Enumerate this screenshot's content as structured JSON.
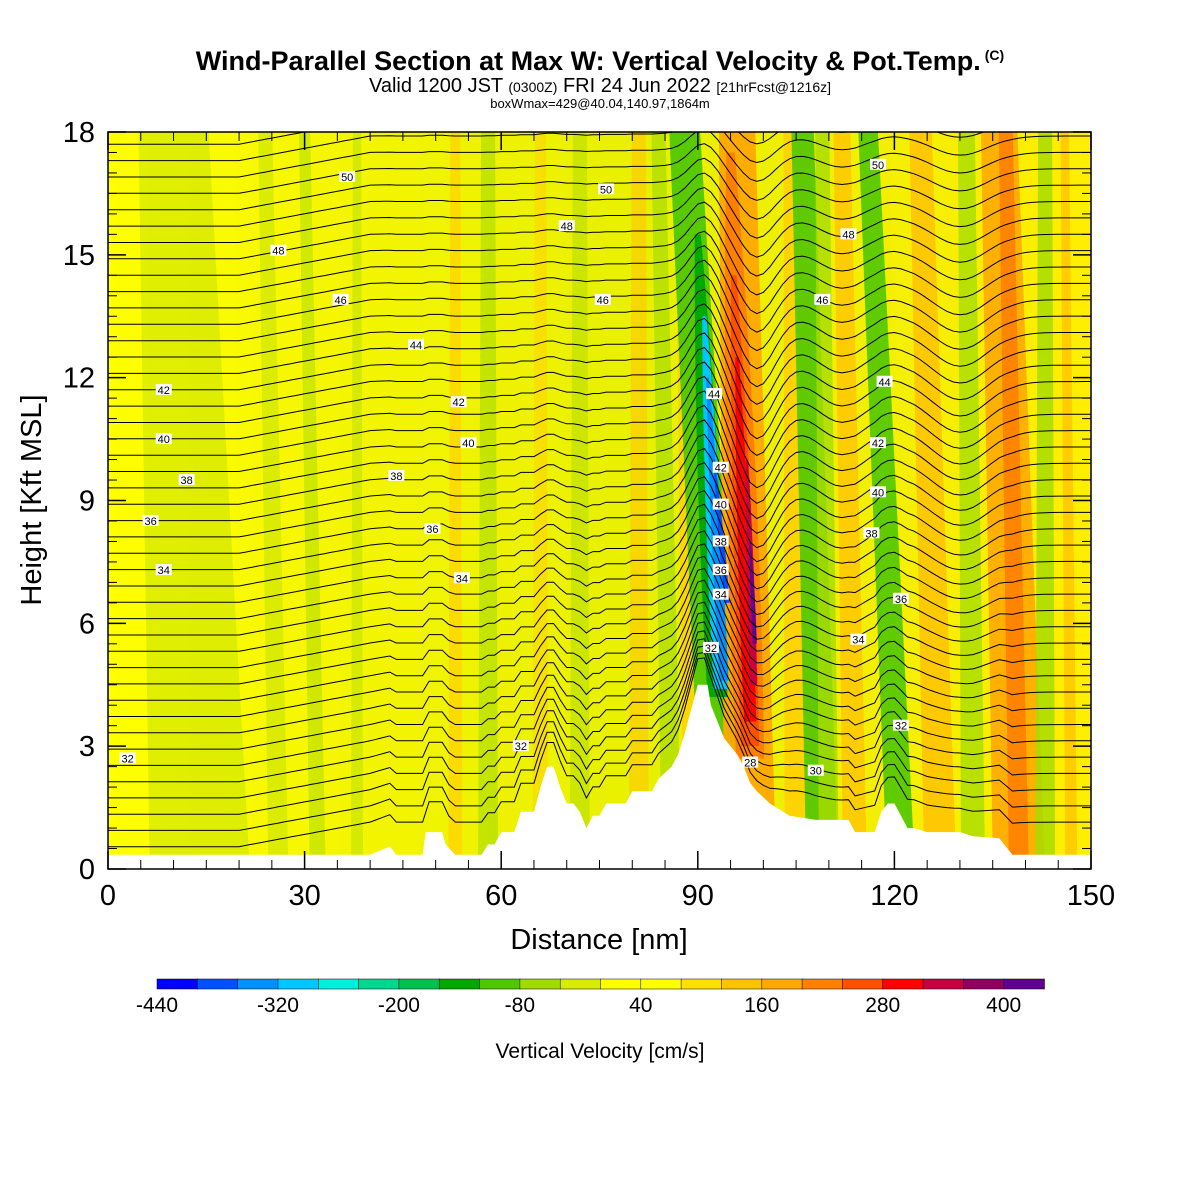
{
  "header": {
    "title": "Wind-Parallel Section at Max W: Vertical Velocity & Pot.Temp.",
    "copyright": "(C)",
    "valid_main": "Valid 1200 JST",
    "valid_utc": "(0300Z)",
    "valid_date": "FRI 24 Jun 2022",
    "forecast": "[21hrFcst@1216z]",
    "boxmax": "boxWmax=429@40.04,140.97,1864m"
  },
  "chart_data": {
    "type": "heatmap",
    "xlabel": "Distance [nm]",
    "ylabel": "Height [Kft MSL]",
    "xlim": [
      0,
      150
    ],
    "ylim": [
      0,
      18
    ],
    "x_ticks": [
      0,
      30,
      60,
      90,
      120,
      150
    ],
    "y_ticks": [
      0,
      3,
      6,
      9,
      12,
      15,
      18
    ],
    "colorbar": {
      "label": "Vertical Velocity [cm/s]",
      "min": -440,
      "max": 440,
      "step": 40,
      "tick_labels": [
        "-440",
        "-320",
        "-200",
        "-80",
        "40",
        "160",
        "280",
        "400"
      ],
      "colors": [
        "#0000ff",
        "#0050ff",
        "#0090ff",
        "#00c8ff",
        "#00f0e0",
        "#00d890",
        "#00c050",
        "#00a800",
        "#50c800",
        "#a0dc00",
        "#d8ec00",
        "#ffff00",
        "#ffe000",
        "#ffc400",
        "#ffa800",
        "#ff8000",
        "#ff5000",
        "#ff0000",
        "#c80040",
        "#900060",
        "#600090"
      ]
    },
    "theta_contour_labels": [
      "32",
      "34",
      "36",
      "38",
      "40",
      "42",
      "44",
      "46",
      "48",
      "50",
      "28",
      "30"
    ],
    "terrain_peak": {
      "x_nm": 91,
      "height_kft": 4.5
    },
    "updraft_max": {
      "value_cms": 429,
      "lat": 40.04,
      "lon": 140.97,
      "height_m": 1864
    },
    "features": [
      {
        "kind": "downdraft",
        "x_nm_bottom": 94,
        "x_nm_top": 91,
        "min_cms": -440
      },
      {
        "kind": "updraft",
        "x_nm_bottom": 97,
        "x_nm_top": 95,
        "max_cms": 429
      }
    ]
  }
}
